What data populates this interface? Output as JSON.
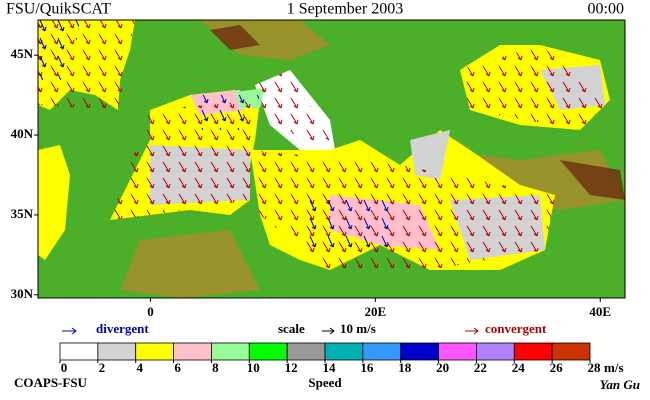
{
  "header": {
    "left": "FSU/QuikSCAT",
    "center": "1 September 2003",
    "right": "00:00"
  },
  "map": {
    "latlim": [
      29.8,
      47.2
    ],
    "lonlim": [
      -10,
      42.2
    ],
    "lat_ticks": [
      {
        "value": 45,
        "label": "45N"
      },
      {
        "value": 40,
        "label": "40N"
      },
      {
        "value": 35,
        "label": "35N"
      },
      {
        "value": 30,
        "label": "30N"
      }
    ],
    "lon_ticks": [
      0,
      {
        "value": 20,
        "label": "20E"
      },
      {
        "value": 40,
        "label": "40E"
      }
    ]
  },
  "legend": {
    "divergent": "divergent",
    "scale": "scale",
    "scale_value": "10 m/s",
    "convergent": "convergent"
  },
  "colorbar": {
    "title": "Speed",
    "unit": "m/s",
    "lim": [
      0,
      28
    ],
    "ticks": [
      0,
      2,
      4,
      6,
      8,
      10,
      12,
      14,
      16,
      18,
      20,
      22,
      24,
      26,
      28
    ],
    "colors": [
      "#ffffff",
      "#d3d3d3",
      "#ffff00",
      "#ffc0cb",
      "#98fb98",
      "#00ff00",
      "#999999",
      "#00b0b0",
      "#3399ff",
      "#0000c8",
      "#ff55ff",
      "#b080ff",
      "#ff0000",
      "#cc3300",
      "#000000"
    ]
  },
  "footer": {
    "left": "COAPS-FSU",
    "right": "Yan Gu"
  }
}
